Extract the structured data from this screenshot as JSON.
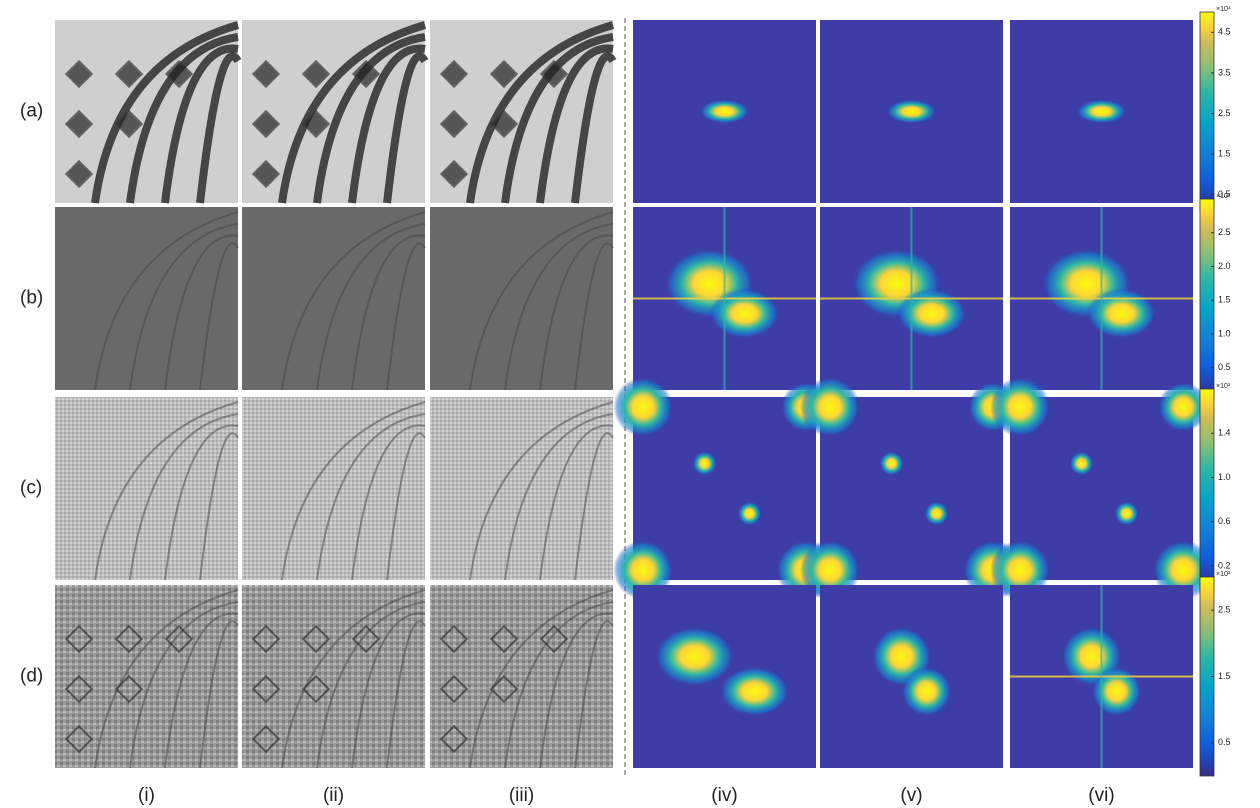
{
  "row_labels": [
    "(a)",
    "(b)",
    "(c)",
    "(d)"
  ],
  "column_labels": [
    "(i)",
    "(ii)",
    "(iii)",
    "(iv)",
    "(v)",
    "(vi)"
  ],
  "colorbars": [
    {
      "multiplier": "×10⁴",
      "range": [
        0.1,
        5.0
      ],
      "ticks": [
        0.5,
        1.5,
        2.5,
        3.5,
        4.5
      ]
    },
    {
      "multiplier": "×10³",
      "range": [
        0.05,
        3.0
      ],
      "ticks": [
        0.5,
        {
          "value": 1,
          "label": "1.0"
        },
        1.5,
        {
          "value": 2,
          "label": "2.0"
        },
        2.5
      ]
    },
    {
      "multiplier": "×10³",
      "range": [
        0,
        1.8
      ],
      "ticks": [
        0.2,
        0.6,
        {
          "value": 1,
          "label": "1.0"
        },
        1.4
      ]
    },
    {
      "multiplier": "×10²",
      "range": [
        0,
        3.0
      ],
      "ticks": [
        0.5,
        1.5,
        2.5
      ]
    }
  ]
}
